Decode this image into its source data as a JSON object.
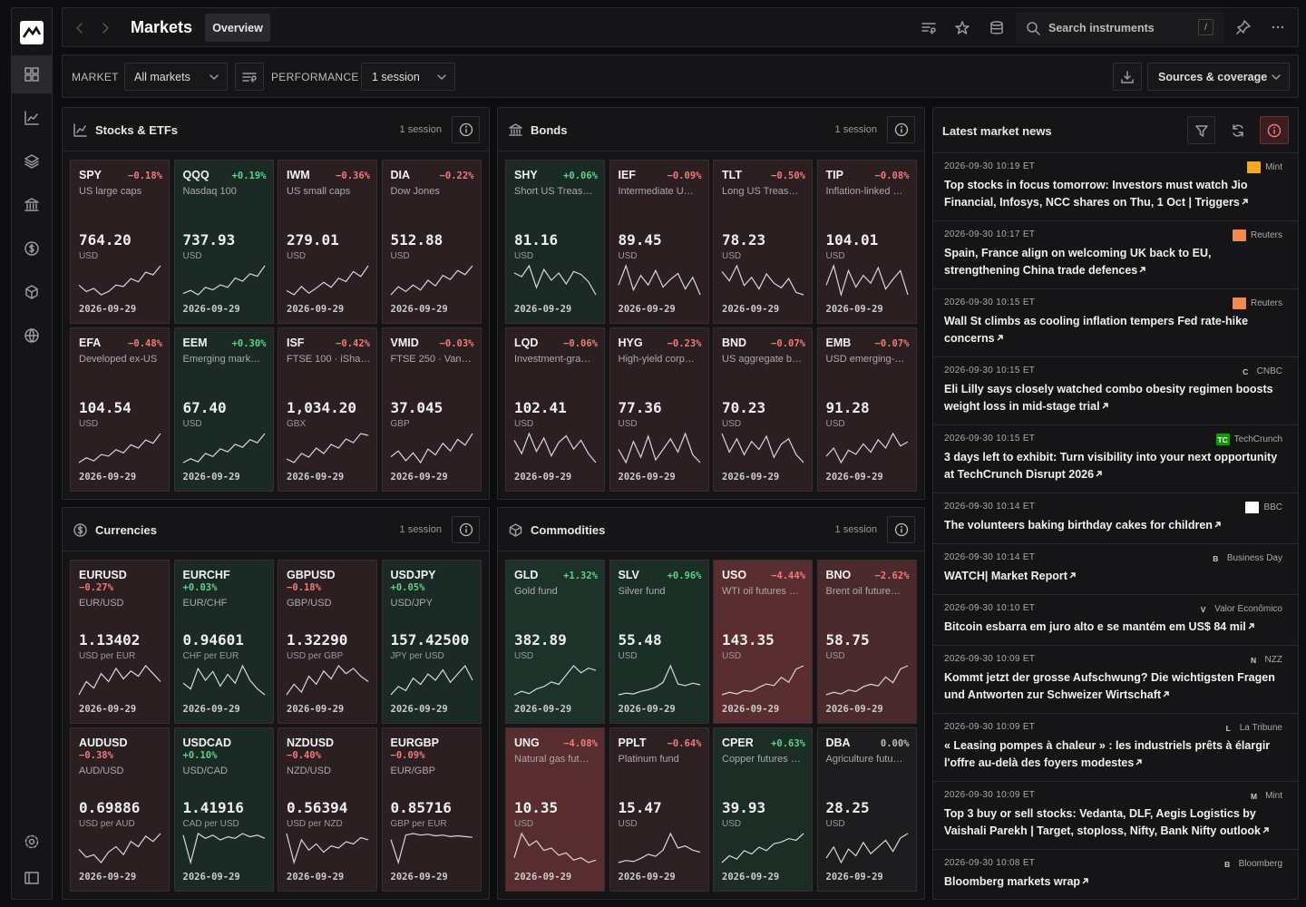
{
  "header": {
    "title": "Markets",
    "tab": "Overview",
    "search_placeholder": "Search instruments",
    "search_key": "/"
  },
  "filters": {
    "market_label": "MARKET",
    "market_value": "All markets",
    "performance_label": "PERFORMANCE",
    "performance_value": "1 session",
    "sources_button": "Sources & coverage"
  },
  "panels": [
    {
      "title": "Stocks & ETFs",
      "period": "1 session",
      "layout": "standard",
      "tiles": [
        {
          "symbol": "SPY",
          "change": "−0.18%",
          "name": "US large caps",
          "price": "764.20",
          "unit": "USD",
          "date": "2026-09-29",
          "color": "#2b1f22",
          "change_color": "#f07a7a",
          "spark": [
            3,
            2,
            2.5,
            1.5,
            2,
            3,
            2.8,
            4,
            3.5,
            5,
            4.6,
            6
          ]
        },
        {
          "symbol": "QQQ",
          "change": "+0.19%",
          "name": "Nasdaq 100",
          "price": "737.93",
          "unit": "USD",
          "date": "2026-09-29",
          "color": "#1b2a24",
          "change_color": "#5fd08a",
          "spark": [
            2,
            2.5,
            1.8,
            3,
            2.6,
            3.4,
            3,
            4.5,
            4,
            5.2,
            4.8,
            6.5
          ]
        },
        {
          "symbol": "IWM",
          "change": "−0.36%",
          "name": "US small caps",
          "price": "279.01",
          "unit": "USD",
          "date": "2026-09-29",
          "color": "#2b1f22",
          "change_color": "#f07a7a",
          "spark": [
            2.5,
            2,
            3,
            2.2,
            2.8,
            3.5,
            2.9,
            4,
            3.6,
            4.8,
            4.2,
            5.5
          ]
        },
        {
          "symbol": "DIA",
          "change": "−0.22%",
          "name": "Dow Jones",
          "price": "512.88",
          "unit": "USD",
          "date": "2026-09-29",
          "color": "#2b1f22",
          "change_color": "#f07a7a",
          "spark": [
            2,
            3,
            2.4,
            3.2,
            2.6,
            3.8,
            3.1,
            4.4,
            3.9,
            5,
            4.5,
            5.6
          ]
        },
        {
          "symbol": "EFA",
          "change": "−0.48%",
          "name": "Developed ex-US",
          "price": "104.54",
          "unit": "USD",
          "date": "2026-09-29",
          "color": "#2b1f22",
          "change_color": "#f07a7a",
          "spark": [
            2,
            2.6,
            2.2,
            3,
            2.8,
            3.6,
            3.2,
            4.2,
            3.8,
            4.8,
            4.4,
            5.6
          ]
        },
        {
          "symbol": "EEM",
          "change": "+0.30%",
          "name": "Emerging mark…",
          "price": "67.40",
          "unit": "USD",
          "date": "2026-09-29",
          "color": "#1b2a24",
          "change_color": "#5fd08a",
          "spark": [
            2,
            2.5,
            2.1,
            3.2,
            2.8,
            3.8,
            3.4,
            4.4,
            4,
            5,
            4.6,
            5.8
          ]
        },
        {
          "symbol": "ISF",
          "change": "−0.42%",
          "name": "FTSE 100 · iSha…",
          "price": "1,034.20",
          "unit": "GBX",
          "date": "2026-09-29",
          "color": "#2b1f22",
          "change_color": "#f07a7a",
          "spark": [
            2.4,
            2,
            3,
            2.6,
            3.6,
            3,
            4,
            3.6,
            4.6,
            4.2,
            5.2,
            5
          ]
        },
        {
          "symbol": "VMID",
          "change": "−0.03%",
          "name": "FTSE 250 · Van…",
          "price": "37.045",
          "unit": "GBP",
          "date": "2026-09-29",
          "color": "#2b1f22",
          "change_color": "#f07a7a",
          "spark": [
            3,
            3.6,
            2.6,
            3.4,
            2.4,
            3.8,
            3.2,
            4.4,
            3.6,
            4.8,
            4.2,
            5.4
          ]
        }
      ]
    },
    {
      "title": "Bonds",
      "period": "1 session",
      "layout": "standard",
      "tiles": [
        {
          "symbol": "SHY",
          "change": "+0.06%",
          "name": "Short US Treas…",
          "price": "81.16",
          "unit": "USD",
          "date": "2026-09-29",
          "color": "#1b2a24",
          "change_color": "#5fd08a",
          "spark": [
            5,
            4.5,
            6,
            3,
            5.5,
            4,
            5,
            3.5,
            5.2,
            4.8,
            3.8,
            2
          ]
        },
        {
          "symbol": "IEF",
          "change": "−0.09%",
          "name": "Intermediate U…",
          "price": "89.45",
          "unit": "USD",
          "date": "2026-09-29",
          "color": "#2b1f22",
          "change_color": "#f07a7a",
          "spark": [
            4,
            6,
            3.5,
            5,
            4,
            5.5,
            3.8,
            4.6,
            5.2,
            3.6,
            4.8,
            3
          ]
        },
        {
          "symbol": "TLT",
          "change": "−0.50%",
          "name": "Long US Treas…",
          "price": "78.23",
          "unit": "USD",
          "date": "2026-09-29",
          "color": "#2b1f22",
          "change_color": "#f07a7a",
          "spark": [
            5,
            4.2,
            5.5,
            3.8,
            4.5,
            3.5,
            4.8,
            4,
            3.6,
            4.4,
            3.2,
            3
          ]
        },
        {
          "symbol": "TIP",
          "change": "−0.08%",
          "name": "Inflation-linked …",
          "price": "104.01",
          "unit": "USD",
          "date": "2026-09-29",
          "color": "#2b1f22",
          "change_color": "#f07a7a",
          "spark": [
            4,
            6,
            3,
            5.5,
            3.8,
            5,
            4.2,
            5.8,
            3.6,
            4.6,
            5.5,
            3
          ]
        },
        {
          "symbol": "LQD",
          "change": "−0.06%",
          "name": "Investment-gra…",
          "price": "102.41",
          "unit": "USD",
          "date": "2026-09-29",
          "color": "#2b1f22",
          "change_color": "#f07a7a",
          "spark": [
            5,
            3.8,
            5.6,
            4,
            5.2,
            3.6,
            4.8,
            5.4,
            4.2,
            5,
            3.8,
            3
          ]
        },
        {
          "symbol": "HYG",
          "change": "−0.23%",
          "name": "High-yield corp…",
          "price": "77.36",
          "unit": "USD",
          "date": "2026-09-29",
          "color": "#2b1f22",
          "change_color": "#f07a7a",
          "spark": [
            4.6,
            3.6,
            5.2,
            4,
            5.6,
            3.8,
            4.6,
            5.4,
            4.4,
            5.8,
            4.2,
            3.6
          ]
        },
        {
          "symbol": "BND",
          "change": "−0.07%",
          "name": "US aggregate b…",
          "price": "70.23",
          "unit": "USD",
          "date": "2026-09-29",
          "color": "#2b1f22",
          "change_color": "#f07a7a",
          "spark": [
            5.4,
            4,
            5,
            3.8,
            4.8,
            4.2,
            5.2,
            3.6,
            4.6,
            5,
            3.8,
            3.2
          ]
        },
        {
          "symbol": "EMB",
          "change": "−0.07%",
          "name": "USD emerging-…",
          "price": "91.28",
          "unit": "USD",
          "date": "2026-09-29",
          "color": "#2b1f22",
          "change_color": "#f07a7a",
          "spark": [
            3.6,
            4.4,
            3,
            4.2,
            3.8,
            4.8,
            4,
            5.2,
            4.4,
            5.8,
            4.6,
            5
          ]
        }
      ]
    },
    {
      "title": "Currencies",
      "period": "1 session",
      "layout": "fx",
      "tiles": [
        {
          "symbol": "EURUSD",
          "change": "−0.27%",
          "name": "EUR/USD",
          "price": "1.13402",
          "unit": "USD per EUR",
          "date": "2026-09-29",
          "color": "#2b1f22",
          "change_color": "#f07a7a",
          "spark": [
            3,
            4,
            3.5,
            4.6,
            4,
            5,
            4.2,
            4.8,
            4.4,
            5.2,
            4.6,
            4
          ]
        },
        {
          "symbol": "EURCHF",
          "change": "+0.03%",
          "name": "EUR/CHF",
          "price": "0.94601",
          "unit": "CHF per EUR",
          "date": "2026-09-29",
          "color": "#1b2a24",
          "change_color": "#5fd08a",
          "spark": [
            4,
            3.6,
            5,
            4.2,
            4.8,
            3.8,
            4.6,
            4,
            5.2,
            4.2,
            3.6,
            3.2
          ]
        },
        {
          "symbol": "GBPUSD",
          "change": "−0.18%",
          "name": "GBP/USD",
          "price": "1.32290",
          "unit": "USD per GBP",
          "date": "2026-09-29",
          "color": "#2b1f22",
          "change_color": "#f07a7a",
          "spark": [
            3,
            3.8,
            3.2,
            4.4,
            3.8,
            4.8,
            4.2,
            5.2,
            4.6,
            5,
            4.4,
            4
          ]
        },
        {
          "symbol": "USDJPY",
          "change": "+0.05%",
          "name": "USD/JPY",
          "price": "157.42500",
          "unit": "JPY per USD",
          "date": "2026-09-29",
          "color": "#1b2a24",
          "change_color": "#5fd08a",
          "spark": [
            2.6,
            3.4,
            3,
            4.2,
            3.6,
            4.6,
            4,
            5,
            3.8,
            4.6,
            5.4,
            4
          ]
        },
        {
          "symbol": "AUDUSD",
          "change": "−0.38%",
          "name": "AUD/USD",
          "price": "0.69886",
          "unit": "USD per AUD",
          "date": "2026-09-29",
          "color": "#2b1f22",
          "change_color": "#f07a7a",
          "spark": [
            3.6,
            3,
            3.2,
            2.6,
            3.4,
            3.8,
            3.2,
            4.2,
            3.8,
            4.6,
            4.2,
            4.8
          ]
        },
        {
          "symbol": "USDCAD",
          "change": "+0.10%",
          "name": "USD/CAD",
          "price": "1.41916",
          "unit": "CAD per USD",
          "date": "2026-09-29",
          "color": "#1b2a24",
          "change_color": "#5fd08a",
          "spark": [
            4.6,
            1.2,
            4.8,
            4.2,
            4.6,
            4,
            4.4,
            4.2,
            4.8,
            4.4,
            4.6,
            4.2
          ]
        },
        {
          "symbol": "NZDUSD",
          "change": "−0.40%",
          "name": "NZD/USD",
          "price": "0.56394",
          "unit": "USD per NZD",
          "date": "2026-09-29",
          "color": "#2b1f22",
          "change_color": "#f07a7a",
          "spark": [
            4.8,
            2,
            4.2,
            3.2,
            3.8,
            3,
            3.6,
            3.4,
            4,
            3.8,
            4.4,
            4.2
          ]
        },
        {
          "symbol": "EURGBP",
          "change": "−0.09%",
          "name": "EUR/GBP",
          "price": "0.85716",
          "unit": "GBP per EUR",
          "date": "2026-09-29",
          "color": "#2b1f22",
          "change_color": "#f07a7a",
          "spark": [
            4,
            1,
            4.6,
            4.8,
            4.6,
            4.7,
            4.5,
            4.6,
            4.4,
            4.5,
            4.4,
            4.3
          ]
        }
      ]
    },
    {
      "title": "Commodities",
      "period": "1 session",
      "layout": "standard",
      "tiles": [
        {
          "symbol": "GLD",
          "change": "+1.32%",
          "name": "Gold fund",
          "price": "382.89",
          "unit": "USD",
          "date": "2026-09-29",
          "color": "#1d3229",
          "change_color": "#5fd08a",
          "spark": [
            1.5,
            1.8,
            1.6,
            2,
            2.2,
            2.6,
            2.4,
            3.2,
            4,
            3.4,
            3.8,
            3.6
          ]
        },
        {
          "symbol": "SLV",
          "change": "+0.96%",
          "name": "Silver fund",
          "price": "55.48",
          "unit": "USD",
          "date": "2026-09-29",
          "color": "#1c2f27",
          "change_color": "#5fd08a",
          "spark": [
            1.5,
            1.7,
            1.6,
            1.9,
            2.1,
            2.4,
            3,
            5,
            2.8,
            2.6,
            2.9,
            2.7
          ]
        },
        {
          "symbol": "USO",
          "change": "−4.44%",
          "name": "WTI oil futures …",
          "price": "143.35",
          "unit": "USD",
          "date": "2026-09-29",
          "color": "#5a2e31",
          "change_color": "#f07a7a",
          "spark": [
            1.5,
            1.8,
            1.6,
            2,
            1.9,
            2.4,
            2.8,
            2.6,
            3.6,
            3,
            4.6,
            5
          ]
        },
        {
          "symbol": "BNO",
          "change": "−2.62%",
          "name": "Brent oil future…",
          "price": "58.75",
          "unit": "USD",
          "date": "2026-09-29",
          "color": "#4a2a2d",
          "change_color": "#f07a7a",
          "spark": [
            1.6,
            1.9,
            1.7,
            2.2,
            2,
            2.6,
            2.9,
            2.7,
            3.8,
            3.1,
            4.8,
            5.2
          ]
        },
        {
          "symbol": "UNG",
          "change": "−4.08%",
          "name": "Natural gas fut…",
          "price": "10.35",
          "unit": "USD",
          "date": "2026-09-29",
          "color": "#572d30",
          "change_color": "#f07a7a",
          "spark": [
            3,
            5,
            4,
            4.4,
            3.6,
            3.8,
            3.2,
            3.4,
            2.8,
            3,
            2.6,
            2.8
          ]
        },
        {
          "symbol": "PPLT",
          "change": "−0.64%",
          "name": "Platinum fund",
          "price": "15.47",
          "unit": "USD",
          "date": "2026-09-29",
          "color": "#2d2023",
          "change_color": "#f07a7a",
          "spark": [
            1.8,
            2,
            1.9,
            2.2,
            2.6,
            2.4,
            3,
            4.6,
            3.2,
            3.4,
            3,
            2.8
          ]
        },
        {
          "symbol": "CPER",
          "change": "+0.63%",
          "name": "Copper futures …",
          "price": "39.93",
          "unit": "USD",
          "date": "2026-09-29",
          "color": "#1c2d26",
          "change_color": "#5fd08a",
          "spark": [
            1.6,
            2.4,
            2,
            3,
            2.6,
            3.4,
            3,
            3.8,
            4,
            4.4,
            4.2,
            5
          ]
        },
        {
          "symbol": "DBA",
          "change": "0.00%",
          "name": "Agriculture futu…",
          "price": "28.25",
          "unit": "USD",
          "date": "2026-09-29",
          "color": "#1d1d20",
          "change_color": "#bbbbbb",
          "spark": [
            3,
            4,
            2.6,
            3.8,
            3.2,
            4.4,
            3.4,
            4,
            4.6,
            3.6,
            4.8,
            5.2
          ]
        }
      ]
    }
  ],
  "news": {
    "title": "Latest market news",
    "items": [
      {
        "time": "2026-09-30 10:19 ET",
        "source": "Mint",
        "badge_color": "#f5a623",
        "headline": "Top stocks in focus tomorrow: Investors must watch Jio Financial, Infosys, NCC shares on Thu, 1 Oct | Triggers"
      },
      {
        "time": "2026-09-30 10:17 ET",
        "source": "Reuters",
        "badge_color": "#f08a4b",
        "headline": "Spain, France align on welcoming UK back to EU, strengthening China trade defences"
      },
      {
        "time": "2026-09-30 10:15 ET",
        "source": "Reuters",
        "badge_color": "#f08a4b",
        "headline": "Wall St climbs as cooling inflation tempers Fed rate-hike concerns"
      },
      {
        "time": "2026-09-30 10:15 ET",
        "source": "CNBC",
        "badge": "C",
        "headline": "Eli Lilly says closely watched combo obesity regimen boosts weight loss in mid-stage trial"
      },
      {
        "time": "2026-09-30 10:15 ET",
        "source": "TechCrunch",
        "badge": "TC",
        "badge_color": "#0a9e01",
        "headline": "3 days left to exhibit: Turn visibility into your next opportunity at TechCrunch Disrupt 2026"
      },
      {
        "time": "2026-09-30 10:14 ET",
        "source": "BBC",
        "badge_color": "#ffffff",
        "headline": "The volunteers baking birthday cakes for children"
      },
      {
        "time": "2026-09-30 10:14 ET",
        "source": "Business Day",
        "badge": "B",
        "headline": "WATCH| Market Report"
      },
      {
        "time": "2026-09-30 10:10 ET",
        "source": "Valor Econômico",
        "badge": "V",
        "headline": "Bitcoin esbarra em juro alto e se mantém em US$ 84 mil"
      },
      {
        "time": "2026-09-30 10:09 ET",
        "source": "NZZ",
        "badge": "N",
        "headline": "Kommt jetzt der grosse Aufschwung? Die wichtigsten Fragen und Antworten zur Schweizer Wirtschaft"
      },
      {
        "time": "2026-09-30 10:09 ET",
        "source": "La Tribune",
        "badge": "L",
        "headline": "« Leasing pompes à chaleur » : les industriels prêts à élargir l'offre au-delà des foyers modestes"
      },
      {
        "time": "2026-09-30 10:09 ET",
        "source": "Mint",
        "badge": "M",
        "headline": "Top 3 buy or sell stocks: Vedanta, DLF, Aegis Logistics by Vaishali Parekh | Target, stoploss, Nifty, Bank Nifty outlook"
      },
      {
        "time": "2026-09-30 10:08 ET",
        "source": "Bloomberg",
        "badge": "B",
        "headline": "Bloomberg markets wrap"
      }
    ]
  }
}
